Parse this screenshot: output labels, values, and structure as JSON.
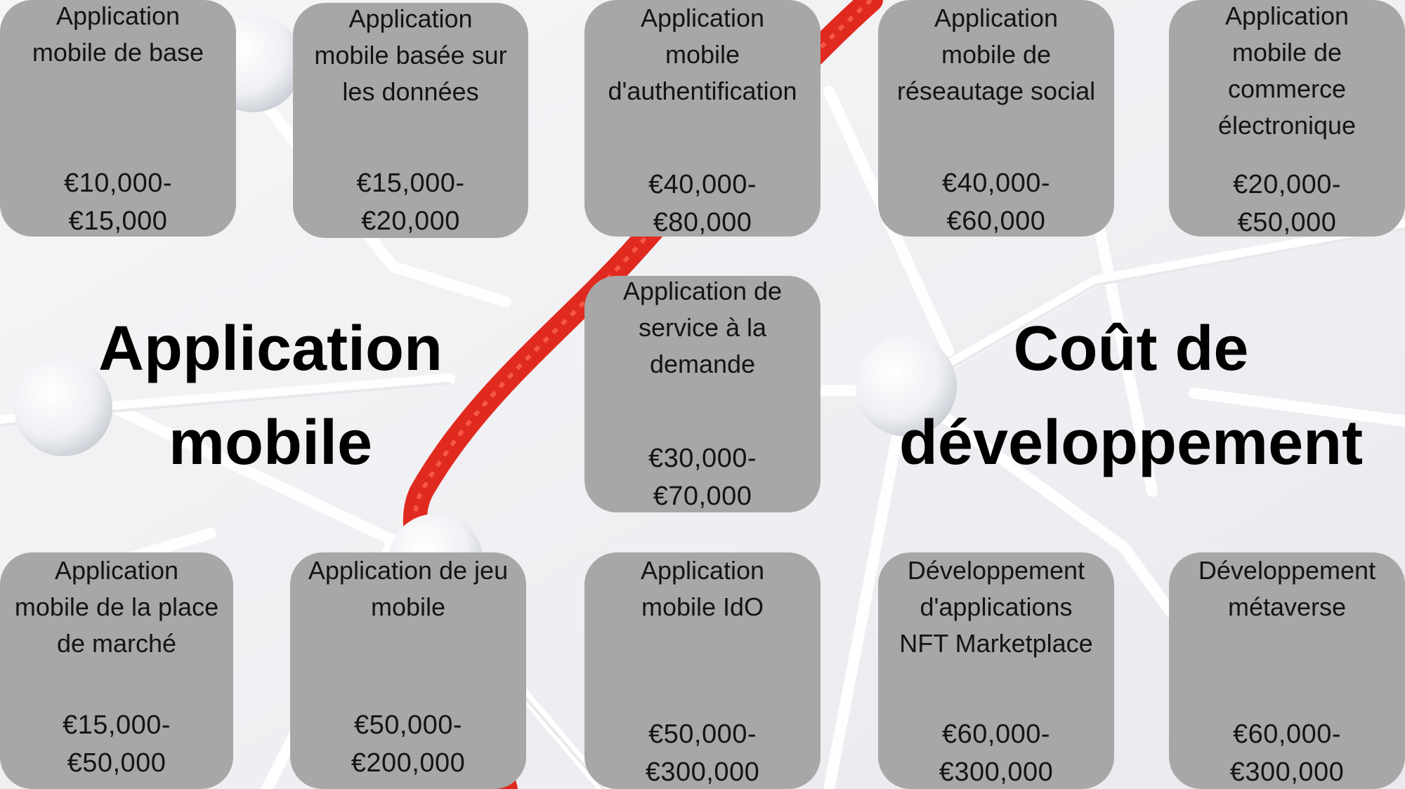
{
  "heading_left": "Application\nmobile",
  "heading_right": "Coût de\ndéveloppement",
  "colors": {
    "card_bg": "#a7a7a7",
    "rope_red": "#e02a1f",
    "string_white": "#ffffff",
    "background": "#f1f1f3",
    "text": "#000000"
  },
  "cards": [
    {
      "id": "base",
      "title": "Application\nmobile de base",
      "price": "€10,000-\n€15,000"
    },
    {
      "id": "donnees",
      "title": "Application\nmobile basée sur\nles données",
      "price": "€15,000-\n€20,000"
    },
    {
      "id": "authentification",
      "title": "Application\nmobile\nd'authentification",
      "price": "€40,000-\n€80,000"
    },
    {
      "id": "reseautage",
      "title": "Application\nmobile de\nréseautage social",
      "price": "€40,000-\n€60,000"
    },
    {
      "id": "commerce",
      "title": "Application\nmobile de\ncommerce\nélectronique",
      "price": "€20,000-\n€50,000"
    },
    {
      "id": "service",
      "title": "Application de\nservice à la\ndemande",
      "price": "€30,000-\n€70,000"
    },
    {
      "id": "marche",
      "title": "Application\nmobile de la place\nde marché",
      "price": "€15,000-\n€50,000"
    },
    {
      "id": "jeu",
      "title": "Application de jeu\nmobile",
      "price": "€50,000-\n€200,000"
    },
    {
      "id": "ido",
      "title": "Application\nmobile IdO",
      "price": "€50,000-\n€300,000"
    },
    {
      "id": "nft",
      "title": "Développement\nd'applications\nNFT Marketplace",
      "price": "€60,000-\n€300,000"
    },
    {
      "id": "metaverse",
      "title": "Développement\nmétaverse",
      "price": "€60,000-\n€300,000"
    }
  ]
}
